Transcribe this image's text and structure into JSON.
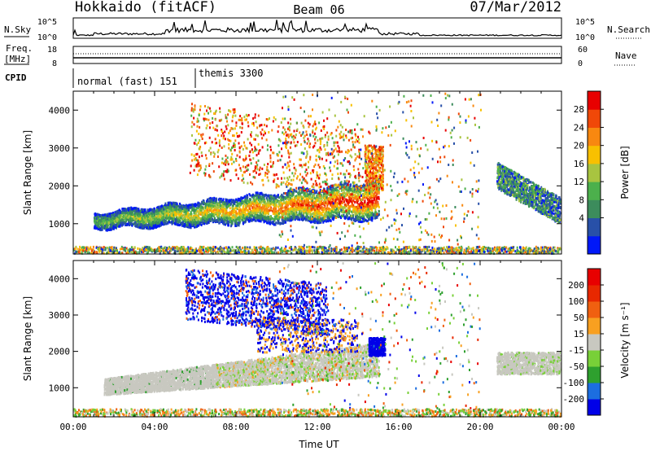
{
  "header": {
    "station": "Hokkaido (fitACF)",
    "beam": "Beam 06",
    "date": "07/Mar/2012"
  },
  "aux_panels": {
    "nsky_label": "N.Sky",
    "nsky_ticks": [
      "10^5",
      "10^0"
    ],
    "nsearch_label": "N.Search",
    "nsearch_ticks": [
      "10^5",
      "10^0"
    ],
    "freq_label_line1": "Freq.",
    "freq_label_line2": "[MHz]",
    "freq_ticks": [
      "18",
      "8"
    ],
    "nave_label": "Nave",
    "nave_ticks": [
      "60",
      "0"
    ],
    "cpid_label": "CPID",
    "cpid_modes": [
      {
        "name": "normal (fast) 151",
        "start_hour": 0
      },
      {
        "name": "themis 3300",
        "start_hour": 6
      }
    ]
  },
  "chart_data": [
    {
      "type": "heatmap",
      "title": "",
      "xlabel": "",
      "ylabel": "Slant Range [km]",
      "xlim_hours": [
        0,
        24
      ],
      "ylim": [
        200,
        4500
      ],
      "yticks": [
        "1000",
        "2000",
        "3000",
        "4000"
      ],
      "colorbar": {
        "label": "Power [dB]",
        "ticks": [
          "28",
          "24",
          "20",
          "16",
          "12",
          "8",
          "4"
        ],
        "colors": [
          "#0018f8",
          "#2850a8",
          "#3c8c5c",
          "#4cb04c",
          "#a8c440",
          "#f8c000",
          "#f88810",
          "#f04808",
          "#e80000"
        ]
      }
    },
    {
      "type": "heatmap",
      "title": "",
      "xlabel": "Time UT",
      "ylabel": "Slant Range [km]",
      "xlim_hours": [
        0,
        24
      ],
      "ylim": [
        200,
        4500
      ],
      "yticks": [
        "1000",
        "2000",
        "3000",
        "4000"
      ],
      "xticks": [
        "00:00",
        "04:00",
        "08:00",
        "12:00",
        "16:00",
        "20:00",
        "00:00"
      ],
      "colorbar": {
        "label": "Velocity [m s⁻¹]",
        "ticks": [
          "200",
          "100",
          "50",
          "15",
          "-15",
          "-50",
          "-100",
          "-200"
        ],
        "colors": [
          "#0000e8",
          "#1c6ee0",
          "#2ea02e",
          "#78d038",
          "#c8c8c0",
          "#f8a020",
          "#f06010",
          "#e82800",
          "#e80000"
        ]
      }
    }
  ]
}
